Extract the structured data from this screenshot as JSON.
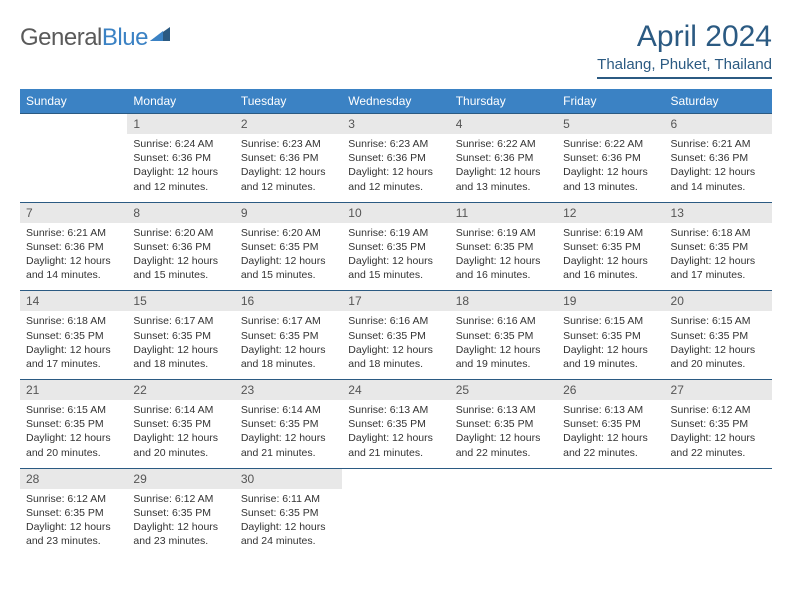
{
  "logo": {
    "part1": "General",
    "part2": "Blue"
  },
  "title": "April 2024",
  "location": "Thalang, Phuket, Thailand",
  "day_headers": [
    "Sunday",
    "Monday",
    "Tuesday",
    "Wednesday",
    "Thursday",
    "Friday",
    "Saturday"
  ],
  "colors": {
    "header_bg": "#3b82c4",
    "header_text": "#ffffff",
    "title_color": "#2b5a82",
    "daynum_bg": "#e8e8e8",
    "border": "#2b5a82"
  },
  "weeks": [
    [
      {
        "n": "",
        "sr": "",
        "ss": "",
        "dl": ""
      },
      {
        "n": "1",
        "sr": "Sunrise: 6:24 AM",
        "ss": "Sunset: 6:36 PM",
        "dl": "Daylight: 12 hours and 12 minutes."
      },
      {
        "n": "2",
        "sr": "Sunrise: 6:23 AM",
        "ss": "Sunset: 6:36 PM",
        "dl": "Daylight: 12 hours and 12 minutes."
      },
      {
        "n": "3",
        "sr": "Sunrise: 6:23 AM",
        "ss": "Sunset: 6:36 PM",
        "dl": "Daylight: 12 hours and 12 minutes."
      },
      {
        "n": "4",
        "sr": "Sunrise: 6:22 AM",
        "ss": "Sunset: 6:36 PM",
        "dl": "Daylight: 12 hours and 13 minutes."
      },
      {
        "n": "5",
        "sr": "Sunrise: 6:22 AM",
        "ss": "Sunset: 6:36 PM",
        "dl": "Daylight: 12 hours and 13 minutes."
      },
      {
        "n": "6",
        "sr": "Sunrise: 6:21 AM",
        "ss": "Sunset: 6:36 PM",
        "dl": "Daylight: 12 hours and 14 minutes."
      }
    ],
    [
      {
        "n": "7",
        "sr": "Sunrise: 6:21 AM",
        "ss": "Sunset: 6:36 PM",
        "dl": "Daylight: 12 hours and 14 minutes."
      },
      {
        "n": "8",
        "sr": "Sunrise: 6:20 AM",
        "ss": "Sunset: 6:36 PM",
        "dl": "Daylight: 12 hours and 15 minutes."
      },
      {
        "n": "9",
        "sr": "Sunrise: 6:20 AM",
        "ss": "Sunset: 6:35 PM",
        "dl": "Daylight: 12 hours and 15 minutes."
      },
      {
        "n": "10",
        "sr": "Sunrise: 6:19 AM",
        "ss": "Sunset: 6:35 PM",
        "dl": "Daylight: 12 hours and 15 minutes."
      },
      {
        "n": "11",
        "sr": "Sunrise: 6:19 AM",
        "ss": "Sunset: 6:35 PM",
        "dl": "Daylight: 12 hours and 16 minutes."
      },
      {
        "n": "12",
        "sr": "Sunrise: 6:19 AM",
        "ss": "Sunset: 6:35 PM",
        "dl": "Daylight: 12 hours and 16 minutes."
      },
      {
        "n": "13",
        "sr": "Sunrise: 6:18 AM",
        "ss": "Sunset: 6:35 PM",
        "dl": "Daylight: 12 hours and 17 minutes."
      }
    ],
    [
      {
        "n": "14",
        "sr": "Sunrise: 6:18 AM",
        "ss": "Sunset: 6:35 PM",
        "dl": "Daylight: 12 hours and 17 minutes."
      },
      {
        "n": "15",
        "sr": "Sunrise: 6:17 AM",
        "ss": "Sunset: 6:35 PM",
        "dl": "Daylight: 12 hours and 18 minutes."
      },
      {
        "n": "16",
        "sr": "Sunrise: 6:17 AM",
        "ss": "Sunset: 6:35 PM",
        "dl": "Daylight: 12 hours and 18 minutes."
      },
      {
        "n": "17",
        "sr": "Sunrise: 6:16 AM",
        "ss": "Sunset: 6:35 PM",
        "dl": "Daylight: 12 hours and 18 minutes."
      },
      {
        "n": "18",
        "sr": "Sunrise: 6:16 AM",
        "ss": "Sunset: 6:35 PM",
        "dl": "Daylight: 12 hours and 19 minutes."
      },
      {
        "n": "19",
        "sr": "Sunrise: 6:15 AM",
        "ss": "Sunset: 6:35 PM",
        "dl": "Daylight: 12 hours and 19 minutes."
      },
      {
        "n": "20",
        "sr": "Sunrise: 6:15 AM",
        "ss": "Sunset: 6:35 PM",
        "dl": "Daylight: 12 hours and 20 minutes."
      }
    ],
    [
      {
        "n": "21",
        "sr": "Sunrise: 6:15 AM",
        "ss": "Sunset: 6:35 PM",
        "dl": "Daylight: 12 hours and 20 minutes."
      },
      {
        "n": "22",
        "sr": "Sunrise: 6:14 AM",
        "ss": "Sunset: 6:35 PM",
        "dl": "Daylight: 12 hours and 20 minutes."
      },
      {
        "n": "23",
        "sr": "Sunrise: 6:14 AM",
        "ss": "Sunset: 6:35 PM",
        "dl": "Daylight: 12 hours and 21 minutes."
      },
      {
        "n": "24",
        "sr": "Sunrise: 6:13 AM",
        "ss": "Sunset: 6:35 PM",
        "dl": "Daylight: 12 hours and 21 minutes."
      },
      {
        "n": "25",
        "sr": "Sunrise: 6:13 AM",
        "ss": "Sunset: 6:35 PM",
        "dl": "Daylight: 12 hours and 22 minutes."
      },
      {
        "n": "26",
        "sr": "Sunrise: 6:13 AM",
        "ss": "Sunset: 6:35 PM",
        "dl": "Daylight: 12 hours and 22 minutes."
      },
      {
        "n": "27",
        "sr": "Sunrise: 6:12 AM",
        "ss": "Sunset: 6:35 PM",
        "dl": "Daylight: 12 hours and 22 minutes."
      }
    ],
    [
      {
        "n": "28",
        "sr": "Sunrise: 6:12 AM",
        "ss": "Sunset: 6:35 PM",
        "dl": "Daylight: 12 hours and 23 minutes."
      },
      {
        "n": "29",
        "sr": "Sunrise: 6:12 AM",
        "ss": "Sunset: 6:35 PM",
        "dl": "Daylight: 12 hours and 23 minutes."
      },
      {
        "n": "30",
        "sr": "Sunrise: 6:11 AM",
        "ss": "Sunset: 6:35 PM",
        "dl": "Daylight: 12 hours and 24 minutes."
      },
      {
        "n": "",
        "sr": "",
        "ss": "",
        "dl": ""
      },
      {
        "n": "",
        "sr": "",
        "ss": "",
        "dl": ""
      },
      {
        "n": "",
        "sr": "",
        "ss": "",
        "dl": ""
      },
      {
        "n": "",
        "sr": "",
        "ss": "",
        "dl": ""
      }
    ]
  ]
}
